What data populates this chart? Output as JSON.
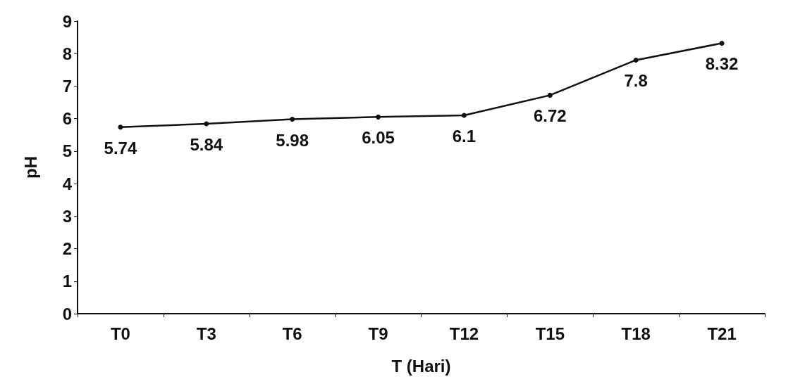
{
  "chart_data": {
    "type": "line",
    "xlabel": "T (Hari)",
    "ylabel": "pH",
    "categories": [
      "T0",
      "T3",
      "T6",
      "T9",
      "T12",
      "T15",
      "T18",
      "T21"
    ],
    "series": [
      {
        "color": "#111111",
        "values": [
          5.74,
          5.84,
          5.98,
          6.05,
          6.1,
          6.72,
          7.8,
          8.32
        ]
      }
    ],
    "ylim": [
      0,
      9
    ],
    "yticks": [
      0,
      1,
      2,
      3,
      4,
      5,
      6,
      7,
      8,
      9
    ],
    "data_labels": true,
    "marker": "circle",
    "line_style": "solid"
  }
}
